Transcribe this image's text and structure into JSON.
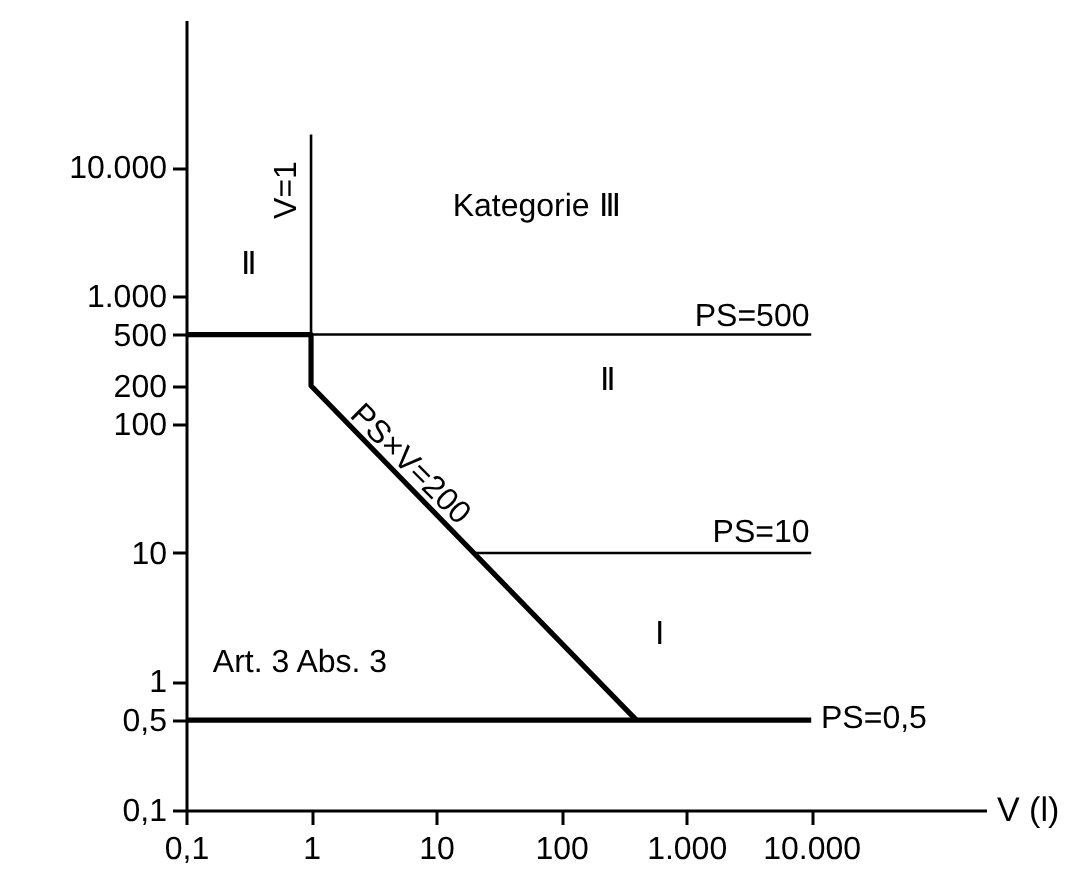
{
  "chart_data": {
    "type": "line",
    "xlabel": "V (l)",
    "log": "xy",
    "grid": false,
    "marker": "none",
    "line_style": "solid",
    "xlim": [
      0.1,
      250000
    ],
    "ylim": [
      0.1,
      140000
    ],
    "xticks": [
      {
        "value": 0.1,
        "label": "0,1"
      },
      1,
      10,
      100,
      {
        "value": 1000,
        "label": "1.000"
      },
      {
        "value": 10000,
        "label": "10.000"
      }
    ],
    "yticks": [
      {
        "value": 0.1,
        "label": "0,1"
      },
      {
        "value": 0.5,
        "label": "0,5"
      },
      1,
      10,
      100,
      200,
      500,
      {
        "value": 1000,
        "label": "1.000"
      },
      {
        "value": 10000,
        "label": "10.000"
      }
    ],
    "series": [
      {
        "color": "#000000",
        "x": [
          0.1,
          1,
          1,
          400
        ],
        "values": [
          500,
          500,
          200,
          0.5
        ]
      },
      {
        "color": "#000000",
        "x": [
          0.1,
          10000
        ],
        "values": [
          0.5,
          0.5
        ]
      },
      {
        "color": "#000000",
        "x": [
          1,
          1
        ],
        "values": [
          500,
          18000
        ]
      },
      {
        "color": "#000000",
        "x": [
          1,
          10000
        ],
        "values": [
          500,
          500
        ]
      },
      {
        "color": "#000000",
        "x": [
          20,
          10000
        ],
        "values": [
          10,
          10
        ]
      }
    ],
    "annotations": [
      "V=1",
      "Kategorie Ⅲ",
      "Ⅱ",
      "PS=500",
      "Ⅱ",
      "PS×V=200",
      "PS=10",
      "Ⅰ",
      "Art. 3 Abs. 3",
      "PS=0,5"
    ]
  }
}
